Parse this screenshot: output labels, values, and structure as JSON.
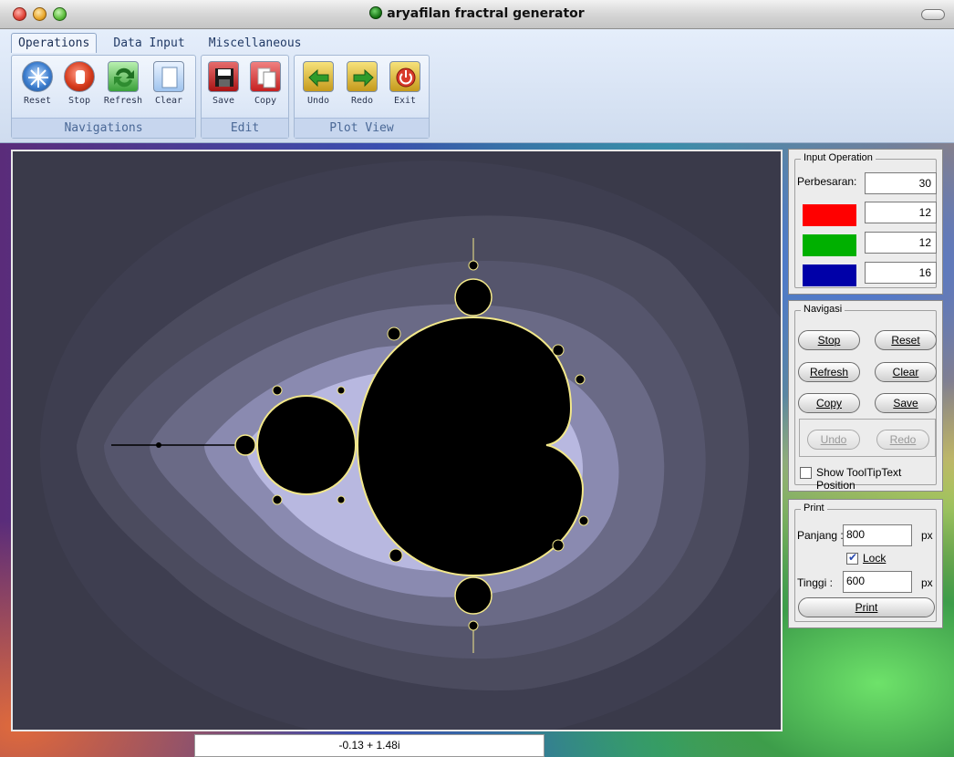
{
  "window": {
    "title": "aryafilan fractral generator"
  },
  "ribbon": {
    "tabs": [
      {
        "label": "Operations"
      },
      {
        "label": "Data Input"
      },
      {
        "label": "Miscellaneous"
      }
    ],
    "groups": [
      {
        "label": "Navigations",
        "buttons": [
          "Reset",
          "Stop",
          "Refresh",
          "Clear"
        ]
      },
      {
        "label": "Edit",
        "buttons": [
          "Save",
          "Copy"
        ]
      },
      {
        "label": "Plot View",
        "buttons": [
          "Undo",
          "Redo",
          "Exit"
        ]
      }
    ]
  },
  "input_operation": {
    "legend": "Input Operation",
    "perbesaran_label": "Perbesaran:",
    "perbesaran_value": "30",
    "red_value": "12",
    "green_value": "12",
    "blue_value": "16",
    "colors": {
      "red": "#ff0000",
      "green": "#00b000",
      "blue": "#0000a8"
    }
  },
  "navigasi": {
    "legend": "Navigasi",
    "buttons": [
      "Stop",
      "Reset",
      "Refresh",
      "Clear",
      "Copy",
      "Save",
      "Undo",
      "Redo"
    ],
    "show_tooltip_label": "Show ToolTipText Position"
  },
  "print": {
    "legend": "Print",
    "panjang_label": "Panjang :",
    "panjang_value": "800",
    "px": "px",
    "lock_label": "Lock",
    "tinggi_label": "Tinggi :",
    "tinggi_value": "600",
    "print_button": "Print"
  },
  "status": {
    "coordinate": "-0.13 + 1.48i"
  }
}
